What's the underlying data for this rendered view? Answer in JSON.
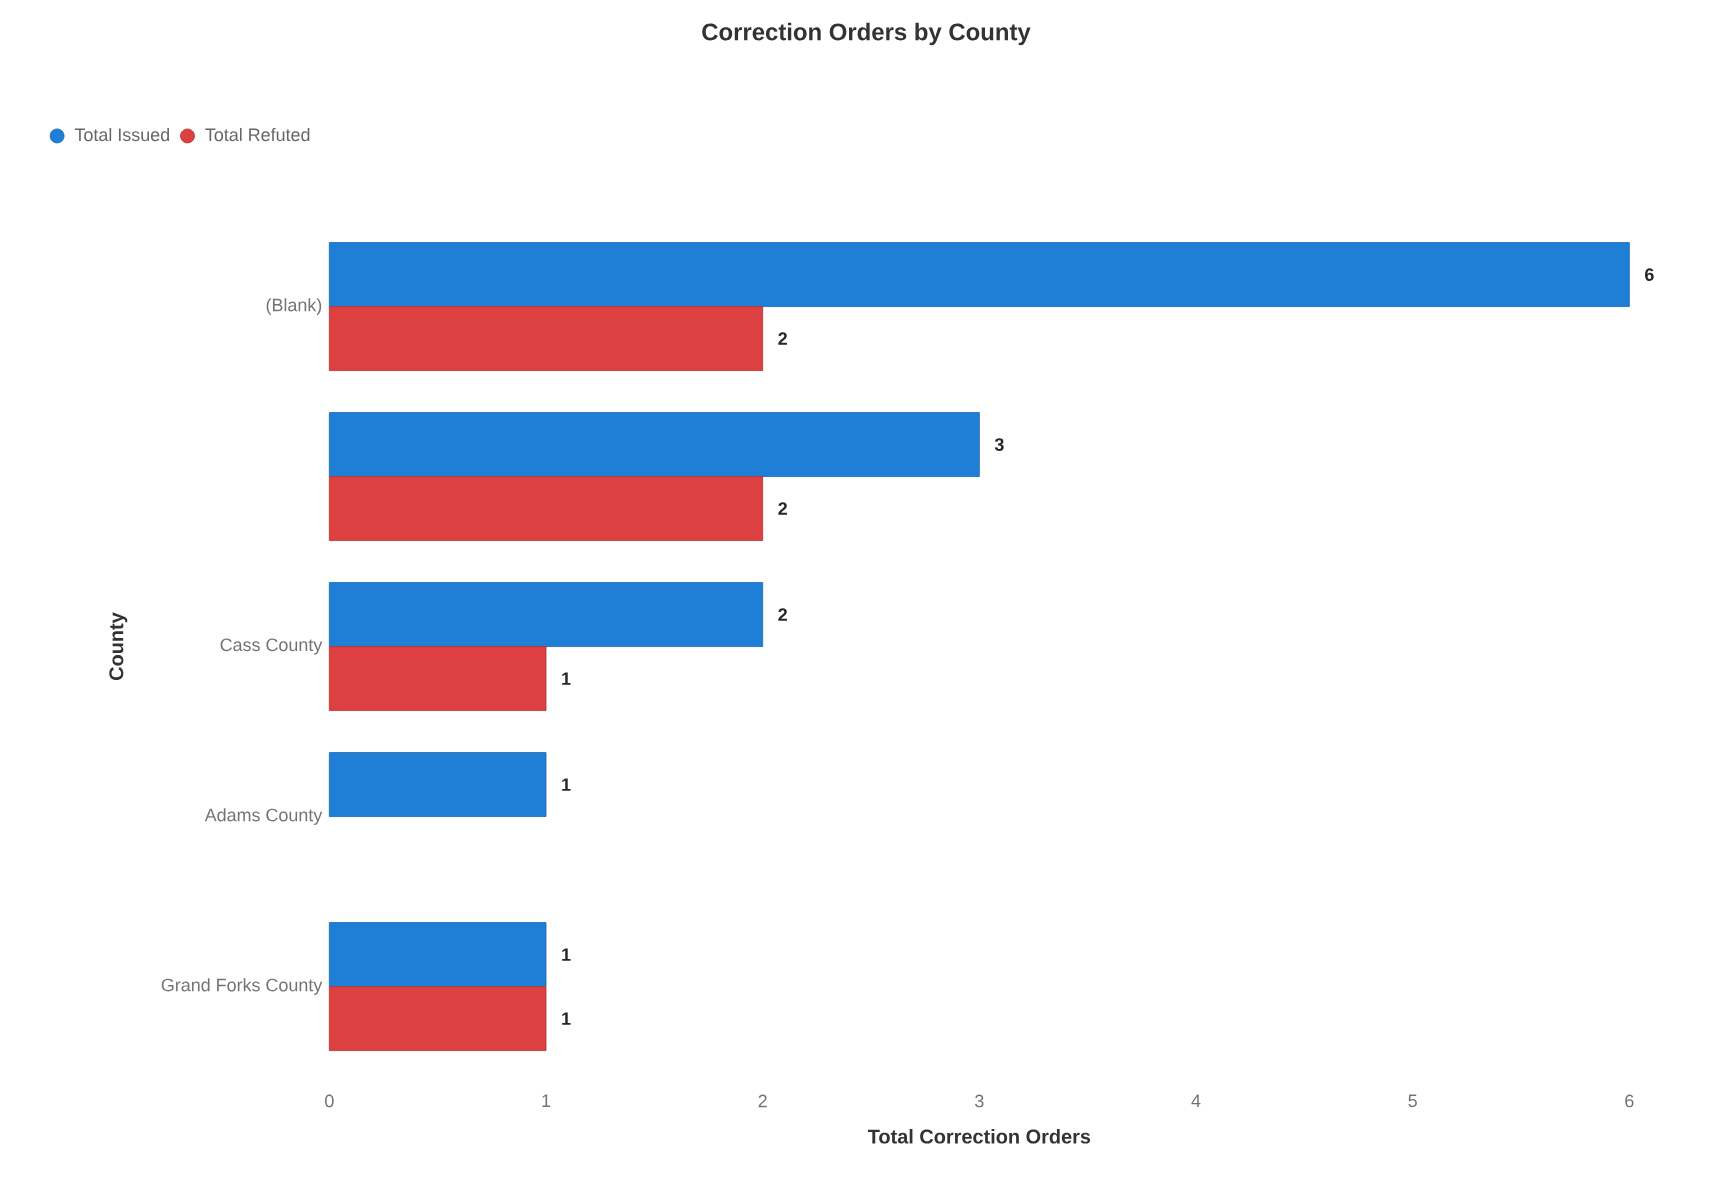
{
  "chart_data": {
    "type": "bar",
    "orientation": "horizontal",
    "title": "Correction Orders by County",
    "xlabel": "Total Correction Orders",
    "ylabel": "County",
    "categories": [
      "(Blank)",
      null,
      "Cass County",
      "Adams County",
      "Grand Forks County"
    ],
    "series": [
      {
        "name": "Total Issued",
        "color": "#1f7fd6",
        "values": [
          6,
          3,
          2,
          1,
          1
        ]
      },
      {
        "name": "Total Refuted",
        "color": "#dd4040",
        "values": [
          2,
          2,
          1,
          null,
          1
        ]
      }
    ],
    "xlim": [
      0,
      6
    ],
    "xticks": [
      0,
      1,
      2,
      3,
      4,
      5,
      6
    ],
    "data_labels": true,
    "legend": "top left",
    "grid": false
  }
}
